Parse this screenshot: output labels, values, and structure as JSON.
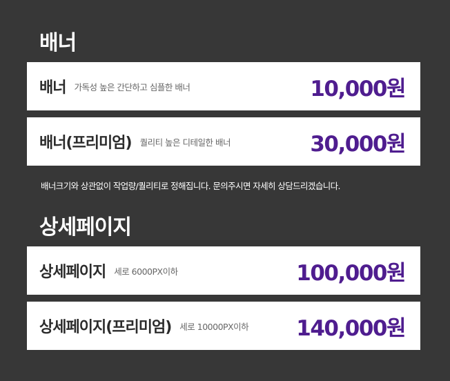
{
  "banner_section": {
    "title": "배너",
    "items": [
      {
        "name": "배너",
        "desc": "가독성 높은 간단하고 심플한 배너",
        "price": "10,000원"
      },
      {
        "name": "배너(프리미엄)",
        "desc": "퀄리티 높은 디테일한 배너",
        "price": "30,000원"
      }
    ],
    "note": "배너크기와 상관없이 작업량/퀄리티로 정해집니다. 문의주시면 자세히 상담드리겠습니다."
  },
  "detail_section": {
    "title": "상세페이지",
    "items": [
      {
        "name": "상세페이지",
        "desc": "세로 6000PX이하",
        "price": "100,000원"
      },
      {
        "name": "상세페이지(프리미엄)",
        "desc": "세로 10000PX이하",
        "price": "140,000원"
      }
    ]
  }
}
